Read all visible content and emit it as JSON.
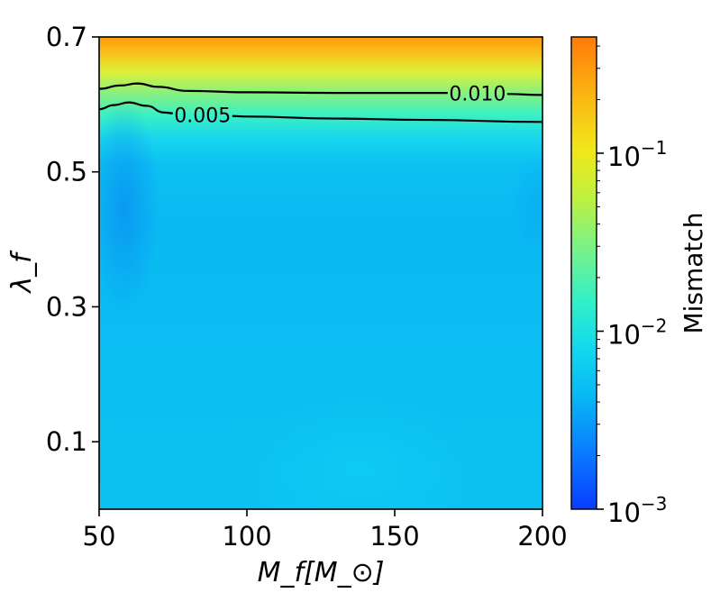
{
  "chart_data": {
    "type": "heatmap",
    "title": "",
    "xlabel": "M_f[M_⊙]",
    "ylabel": "λ_f",
    "xlim": [
      50,
      200
    ],
    "ylim": [
      0.0,
      0.7
    ],
    "xticks": [
      {
        "value": 50,
        "label": "50"
      },
      {
        "value": 100,
        "label": "100"
      },
      {
        "value": 150,
        "label": "150"
      },
      {
        "value": 200,
        "label": "200"
      }
    ],
    "yticks": [
      {
        "value": 0.1,
        "label": "0.1"
      },
      {
        "value": 0.3,
        "label": "0.3"
      },
      {
        "value": 0.5,
        "label": "0.5"
      },
      {
        "value": 0.7,
        "label": "0.7"
      }
    ],
    "colorbar": {
      "label": "Mismatch",
      "scale": "log",
      "range": [
        0.001,
        0.45
      ],
      "colormap": "jet",
      "ticks": [
        {
          "value": 0.001,
          "base": "10",
          "exp": "−3"
        },
        {
          "value": 0.01,
          "base": "10",
          "exp": "−2"
        },
        {
          "value": 0.1,
          "base": "10",
          "exp": "−1"
        }
      ]
    },
    "contours": [
      {
        "level": 0.01,
        "label": "0.010",
        "label_at_x": 178,
        "points": [
          [
            50,
            0.623
          ],
          [
            57,
            0.628
          ],
          [
            63,
            0.631
          ],
          [
            70,
            0.626
          ],
          [
            80,
            0.62
          ],
          [
            100,
            0.618
          ],
          [
            130,
            0.617
          ],
          [
            160,
            0.617
          ],
          [
            175,
            0.617
          ],
          [
            200,
            0.614
          ]
        ]
      },
      {
        "level": 0.005,
        "label": "0.005",
        "label_at_x": 85,
        "points": [
          [
            50,
            0.593
          ],
          [
            55,
            0.599
          ],
          [
            60,
            0.603
          ],
          [
            66,
            0.598
          ],
          [
            72,
            0.588
          ],
          [
            80,
            0.585
          ],
          [
            100,
            0.582
          ],
          [
            130,
            0.579
          ],
          [
            160,
            0.577
          ],
          [
            200,
            0.574
          ]
        ]
      }
    ],
    "field_notes": "Mismatch is low (~3e-3) over most of the plane, rising steeply above λ_f≈0.55 to ~0.45 at λ_f=0.7; slightly lower pocket near M_f≈55, λ_f≈0.5."
  }
}
